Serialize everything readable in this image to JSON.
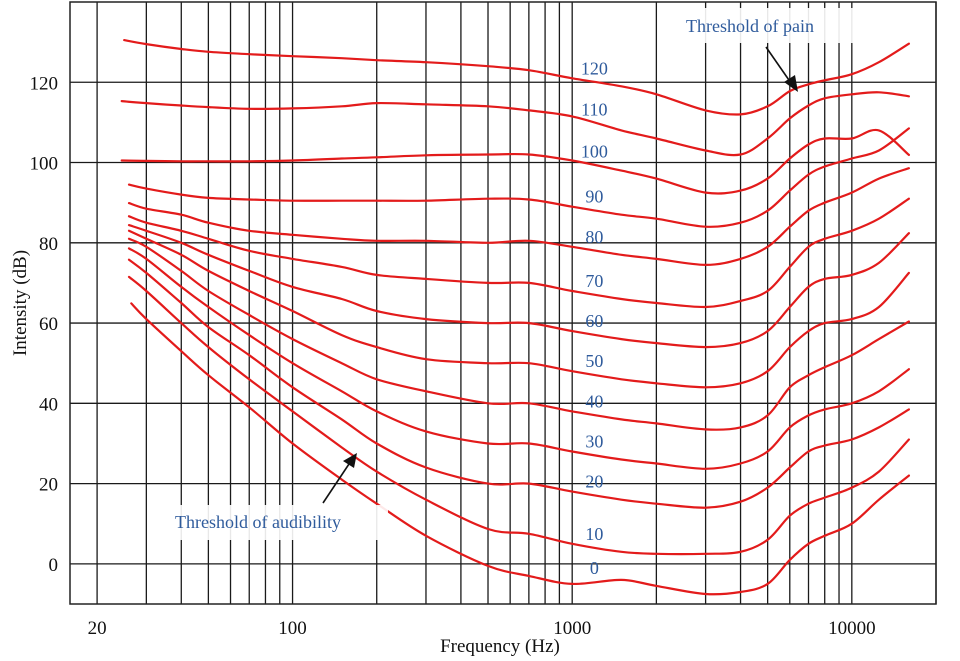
{
  "chart_data": {
    "type": "line",
    "title": "",
    "xlabel": "Frequency (Hz)",
    "ylabel": "Intensity (dB)",
    "x_scale": "log",
    "xlim": [
      16,
      20000
    ],
    "ylim": [
      -10,
      140
    ],
    "x_tick_labels": [
      {
        "value": 20,
        "label": "20"
      },
      {
        "value": 100,
        "label": "100"
      },
      {
        "value": 1000,
        "label": "1000"
      },
      {
        "value": 10000,
        "label": "10000"
      }
    ],
    "y_tick_labels": [
      {
        "value": 0,
        "label": "0"
      },
      {
        "value": 20,
        "label": "20"
      },
      {
        "value": 40,
        "label": "40"
      },
      {
        "value": 60,
        "label": "60"
      },
      {
        "value": 80,
        "label": "80"
      },
      {
        "value": 100,
        "label": "100"
      },
      {
        "value": 120,
        "label": "120"
      }
    ],
    "grid": true,
    "line_color": "#e31b1b",
    "label_color": "#2f5b9c",
    "series": [
      {
        "name": "0",
        "x": [
          26.5,
          30,
          40,
          50,
          70,
          100,
          150,
          200,
          300,
          500,
          700,
          1000,
          1500,
          2000,
          3000,
          4000,
          5000,
          6000,
          7000,
          8000,
          10000,
          12500,
          16000
        ],
        "y": [
          64.9,
          61,
          53,
          47,
          39,
          30,
          21,
          15,
          7,
          -0.5,
          -3,
          -5,
          -4,
          -5.5,
          -7.5,
          -7,
          -5,
          1,
          5,
          7,
          10,
          16,
          22
        ]
      },
      {
        "name": "10",
        "x": [
          26,
          30,
          40,
          50,
          70,
          100,
          150,
          200,
          300,
          500,
          700,
          1000,
          1500,
          2000,
          3000,
          4000,
          5000,
          6000,
          7000,
          8000,
          10000,
          12500,
          16000
        ],
        "y": [
          71.5,
          68,
          60,
          54,
          46,
          38,
          29,
          23,
          16,
          8.7,
          7.5,
          5,
          3,
          2.5,
          2.5,
          3,
          6,
          12,
          15,
          16.5,
          19,
          23,
          31
        ]
      },
      {
        "name": "20",
        "x": [
          26,
          30,
          40,
          50,
          70,
          100,
          150,
          200,
          300,
          500,
          700,
          1000,
          1500,
          2000,
          3000,
          4000,
          5000,
          6000,
          7000,
          8000,
          10000,
          12500,
          16000
        ],
        "y": [
          75.8,
          72.5,
          65,
          59,
          52,
          44,
          36,
          30,
          24,
          20,
          20,
          18,
          16,
          15,
          14,
          15.5,
          19,
          24,
          28,
          29.5,
          31,
          34,
          38.5
        ]
      },
      {
        "name": "30",
        "x": [
          26,
          30,
          40,
          50,
          70,
          100,
          150,
          200,
          300,
          500,
          700,
          1000,
          1500,
          2000,
          3000,
          4000,
          5000,
          6000,
          7000,
          8000,
          10000,
          12500,
          16000
        ],
        "y": [
          78.6,
          76,
          69,
          64,
          57,
          50,
          43,
          38,
          33,
          30,
          30,
          28,
          26,
          25,
          23.7,
          25,
          28,
          34,
          37,
          38.5,
          40,
          43,
          48.5
        ]
      },
      {
        "name": "40",
        "x": [
          26,
          30,
          40,
          50,
          70,
          100,
          150,
          200,
          300,
          500,
          700,
          1000,
          1500,
          2000,
          3000,
          4000,
          5000,
          6000,
          7000,
          8000,
          10000,
          12500,
          16000
        ],
        "y": [
          81,
          79,
          73,
          68,
          62,
          56,
          50,
          46,
          43,
          40,
          40,
          38,
          36,
          35,
          33.5,
          34,
          37,
          44,
          47,
          49,
          52,
          56,
          60.4
        ]
      },
      {
        "name": "50",
        "x": [
          26,
          30,
          40,
          50,
          70,
          100,
          150,
          200,
          300,
          500,
          700,
          1000,
          1500,
          2000,
          3000,
          4000,
          5000,
          6000,
          7000,
          8000,
          10000,
          12500,
          16000
        ],
        "y": [
          83,
          81,
          77,
          73,
          68,
          63,
          57,
          54,
          51,
          50,
          50,
          48,
          46,
          45,
          44,
          45,
          48,
          54,
          58,
          60,
          61,
          64,
          72.5
        ]
      },
      {
        "name": "60",
        "x": [
          26,
          30,
          40,
          50,
          70,
          100,
          150,
          200,
          300,
          500,
          700,
          1000,
          1500,
          2000,
          3000,
          4000,
          5000,
          6000,
          7000,
          8000,
          10000,
          12500,
          16000
        ],
        "y": [
          84.4,
          83,
          80,
          77,
          73,
          69,
          66,
          63,
          61,
          60,
          60,
          58,
          56,
          55,
          54,
          55,
          58,
          64,
          69,
          71,
          72,
          75,
          82.4
        ]
      },
      {
        "name": "70",
        "x": [
          26,
          30,
          40,
          50,
          70,
          100,
          150,
          200,
          300,
          500,
          700,
          1000,
          1500,
          2000,
          3000,
          4000,
          5000,
          6000,
          7000,
          8000,
          10000,
          12500,
          16000
        ],
        "y": [
          86.6,
          85,
          83,
          81,
          78,
          76,
          74,
          72,
          71,
          70,
          70,
          68,
          66,
          65,
          64,
          65.5,
          68,
          74,
          79,
          81,
          83,
          86,
          91
        ]
      },
      {
        "name": "80",
        "x": [
          26,
          30,
          40,
          50,
          70,
          100,
          150,
          200,
          300,
          500,
          700,
          1000,
          1500,
          2000,
          3000,
          4000,
          5000,
          6000,
          7000,
          8000,
          10000,
          12500,
          16000
        ],
        "y": [
          89.9,
          88.5,
          87,
          85,
          83,
          82,
          81,
          80.5,
          80.5,
          80,
          80.5,
          79,
          77,
          76,
          74.5,
          76,
          79,
          84,
          88,
          90,
          92.5,
          96,
          98.6
        ]
      },
      {
        "name": "90",
        "x": [
          26,
          30,
          40,
          50,
          70,
          100,
          150,
          200,
          300,
          500,
          700,
          1000,
          1500,
          2000,
          3000,
          4000,
          5000,
          6000,
          7000,
          8000,
          10000,
          12500,
          16000
        ],
        "y": [
          94.5,
          93.5,
          92,
          91.2,
          90.8,
          90.5,
          90.5,
          90.5,
          90.5,
          91,
          90.8,
          89,
          87,
          86,
          84,
          85,
          88,
          93,
          97,
          99,
          101,
          103,
          108.5
        ]
      },
      {
        "name": "100",
        "x": [
          24.5,
          30,
          40,
          50,
          70,
          100,
          150,
          200,
          300,
          500,
          700,
          1000,
          1500,
          2000,
          3000,
          4000,
          5000,
          6000,
          7000,
          8000,
          10000,
          12500,
          16000
        ],
        "y": [
          100.5,
          100.4,
          100.3,
          100.3,
          100.3,
          100.5,
          101,
          101.3,
          101.8,
          102,
          102,
          100.5,
          98,
          96,
          92.5,
          93,
          96,
          101,
          104.5,
          106,
          106,
          108,
          101.9
        ]
      },
      {
        "name": "110",
        "x": [
          24.5,
          30,
          40,
          50,
          70,
          100,
          150,
          200,
          300,
          500,
          700,
          1000,
          1500,
          2000,
          3000,
          4000,
          5000,
          6000,
          7000,
          8000,
          10000,
          12500,
          16000
        ],
        "y": [
          115.3,
          114.8,
          114.2,
          113.8,
          113.4,
          113.5,
          114,
          114.8,
          114.5,
          114,
          113,
          111.5,
          108,
          106,
          103,
          102,
          106,
          111,
          114.2,
          116,
          117,
          117.5,
          116.5
        ]
      },
      {
        "name": "120",
        "x": [
          25,
          30,
          40,
          50,
          70,
          100,
          150,
          200,
          300,
          500,
          700,
          1000,
          1500,
          2000,
          3000,
          4000,
          5000,
          6000,
          7000,
          8000,
          10000,
          12500,
          16000
        ],
        "y": [
          130.5,
          129.5,
          128.3,
          127.6,
          127,
          126.5,
          126,
          125.5,
          125,
          124,
          123,
          121,
          119,
          117,
          113,
          112,
          114,
          117.8,
          119.5,
          120.5,
          122,
          125,
          129.6
        ]
      }
    ],
    "annotations": [
      {
        "text": "Threshold of pain",
        "points_to_series": "120"
      },
      {
        "text": "Threshold of audibility",
        "points_to_series": "0"
      }
    ]
  }
}
